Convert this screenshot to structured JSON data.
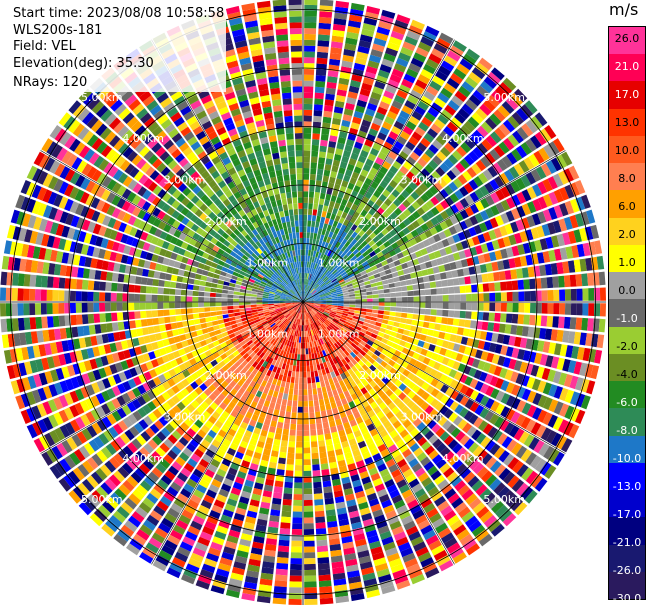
{
  "header": {
    "start_time": "Start time: 2023/08/08 10:58:58",
    "instrument": "WLS200s-181",
    "field": "Field: VEL",
    "elevation": "Elevation(deg): 35.30",
    "nrays": "NRays: 120"
  },
  "colorbar": {
    "unit": "m/s",
    "ticks": [
      "26.0",
      "21.0",
      "17.0",
      "13.0",
      "10.0",
      "8.0",
      "6.0",
      "2.0",
      "1.0",
      "0.0",
      "-1.0",
      "-2.0",
      "-4.0",
      "-6.0",
      "-8.0",
      "-10.0",
      "-13.0",
      "-17.0",
      "-21.0",
      "-26.0",
      "-30.0"
    ],
    "colors": [
      "#ff3399",
      "#ff0055",
      "#e60000",
      "#ff3300",
      "#ff5a1e",
      "#ff7f50",
      "#ffa000",
      "#ffd21e",
      "#ffff00",
      "#a0a0a0",
      "#696969",
      "#9acd32",
      "#6b8e23",
      "#228b22",
      "#2e8b57",
      "#1e78c8",
      "#0000ff",
      "#0000cd",
      "#000080",
      "#191970",
      "#2a1a5e"
    ]
  },
  "rings": {
    "labels": [
      "1.00km",
      "2.00km",
      "3.00km",
      "4.00km",
      "5.00km"
    ]
  }
}
